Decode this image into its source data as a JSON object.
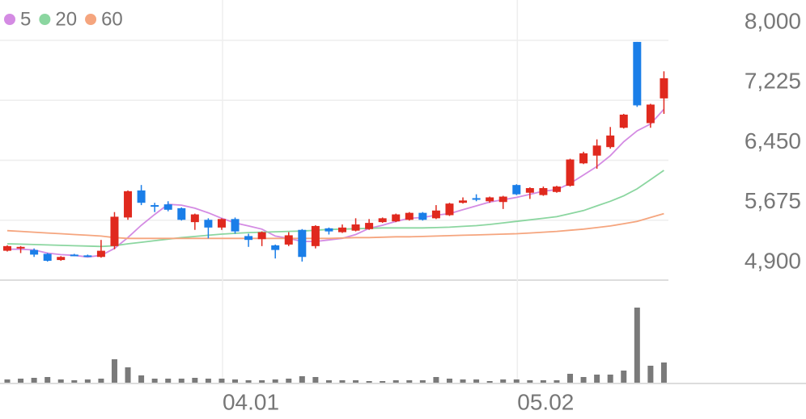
{
  "chart_data": {
    "type": "candlestick",
    "categories": [
      null,
      null,
      null,
      null,
      null,
      null,
      null,
      null,
      null,
      null,
      null,
      null,
      null,
      null,
      null,
      null,
      "04.01",
      null,
      null,
      null,
      null,
      null,
      null,
      null,
      null,
      null,
      null,
      null,
      null,
      null,
      null,
      null,
      null,
      null,
      null,
      null,
      null,
      null,
      "05.02",
      null,
      null,
      null,
      null,
      null,
      null,
      null,
      null,
      null,
      null,
      null
    ],
    "open": [
      5280,
      5310,
      5290,
      5240,
      5160,
      5230,
      5220,
      5200,
      5340,
      5710,
      6060,
      5870,
      5880,
      5830,
      5650,
      5680,
      5580,
      5690,
      5470,
      5430,
      5350,
      5360,
      5550,
      5340,
      5570,
      5520,
      5540,
      5560,
      5650,
      5660,
      5680,
      5770,
      5700,
      5740,
      5900,
      5960,
      5920,
      5910,
      6130,
      6030,
      6000,
      6040,
      6120,
      6410,
      6510,
      6620,
      6870,
      7980,
      6930,
      7250
    ],
    "high": [
      5350,
      5340,
      5310,
      5250,
      5210,
      5240,
      5230,
      5420,
      5780,
      6060,
      6130,
      5900,
      5920,
      5840,
      5760,
      5700,
      5700,
      5710,
      5500,
      5530,
      5360,
      5520,
      5560,
      5610,
      5580,
      5620,
      5700,
      5690,
      5710,
      5760,
      5780,
      5780,
      5870,
      5900,
      5970,
      6010,
      5980,
      5990,
      6140,
      6100,
      6110,
      6120,
      6470,
      6560,
      6720,
      6880,
      7050,
      7980,
      7180,
      7600
    ],
    "low": [
      5270,
      5250,
      5200,
      5140,
      5150,
      5210,
      5200,
      5190,
      5300,
      5680,
      5870,
      5780,
      5790,
      5670,
      5550,
      5440,
      5550,
      5500,
      5330,
      5340,
      5180,
      5340,
      5140,
      5310,
      5490,
      5510,
      5530,
      5550,
      5640,
      5650,
      5670,
      5670,
      5690,
      5730,
      5890,
      5920,
      5900,
      5820,
      6000,
      5950,
      5990,
      6030,
      6110,
      6400,
      6340,
      6600,
      6860,
      7140,
      6870,
      7050
    ],
    "close": [
      5340,
      5330,
      5230,
      5150,
      5200,
      5215,
      5205,
      5280,
      5720,
      6050,
      5900,
      5850,
      5810,
      5680,
      5750,
      5580,
      5690,
      5530,
      5420,
      5520,
      5290,
      5480,
      5200,
      5600,
      5530,
      5580,
      5620,
      5640,
      5700,
      5750,
      5770,
      5680,
      5800,
      5890,
      5930,
      5950,
      5970,
      5980,
      6010,
      6090,
      6090,
      6110,
      6460,
      6540,
      6640,
      6770,
      7040,
      7160,
      7170,
      7510
    ],
    "up_color": "#e0291e",
    "down_color": "#1a7ee8",
    "moving_averages": [
      {
        "name": "5",
        "color": "#d48be3",
        "values": [
          5300,
          5300,
          5290,
          5250,
          5230,
          5220,
          5200,
          5220,
          5310,
          5450,
          5610,
          5750,
          5880,
          5870,
          5830,
          5770,
          5700,
          5640,
          5600,
          5560,
          5470,
          5440,
          5400,
          5400,
          5420,
          5440,
          5490,
          5570,
          5610,
          5660,
          5700,
          5710,
          5740,
          5760,
          5810,
          5860,
          5910,
          5940,
          5970,
          6010,
          6050,
          6070,
          6150,
          6260,
          6370,
          6510,
          6690,
          6830,
          6920,
          7110
        ]
      },
      {
        "name": "20",
        "color": "#8bd6a0",
        "values": [
          5370,
          5365,
          5360,
          5355,
          5350,
          5345,
          5340,
          5335,
          5345,
          5370,
          5390,
          5410,
          5430,
          5450,
          5465,
          5480,
          5495,
          5505,
          5515,
          5520,
          5525,
          5530,
          5535,
          5545,
          5555,
          5560,
          5565,
          5570,
          5575,
          5575,
          5575,
          5575,
          5580,
          5585,
          5595,
          5605,
          5620,
          5640,
          5660,
          5680,
          5700,
          5720,
          5760,
          5800,
          5860,
          5920,
          5990,
          6080,
          6200,
          6320
        ]
      },
      {
        "name": "60",
        "color": "#f5a57e",
        "values": [
          5540,
          5530,
          5520,
          5510,
          5500,
          5490,
          5480,
          5470,
          5450,
          5440,
          5440,
          5440,
          5440,
          5440,
          5440,
          5440,
          5440,
          5440,
          5440,
          5440,
          5440,
          5440,
          5440,
          5440,
          5440,
          5445,
          5450,
          5450,
          5455,
          5460,
          5460,
          5465,
          5470,
          5475,
          5480,
          5485,
          5490,
          5495,
          5500,
          5510,
          5520,
          5530,
          5545,
          5560,
          5580,
          5600,
          5630,
          5660,
          5710,
          5760
        ]
      }
    ],
    "volume": [
      4,
      5,
      6,
      7,
      4,
      3,
      4,
      5,
      29,
      19,
      9,
      5,
      5,
      5,
      6,
      5,
      5,
      4,
      3,
      3,
      4,
      5,
      8,
      7,
      3,
      3,
      3,
      2,
      2,
      3,
      3,
      3,
      7,
      5,
      4,
      4,
      2,
      4,
      4,
      3,
      3,
      3,
      11,
      7,
      10,
      10,
      15,
      93,
      21,
      25
    ],
    "volume_color": "#7a7a7a",
    "ylim": [
      4900,
      8000
    ],
    "yticks": [
      {
        "value": 4900,
        "label": "4,900"
      },
      {
        "value": 5675,
        "label": "5,675"
      },
      {
        "value": 6450,
        "label": "6,450"
      },
      {
        "value": 7225,
        "label": "7,225"
      },
      {
        "value": 8000,
        "label": "8,000"
      }
    ],
    "grid": true
  }
}
